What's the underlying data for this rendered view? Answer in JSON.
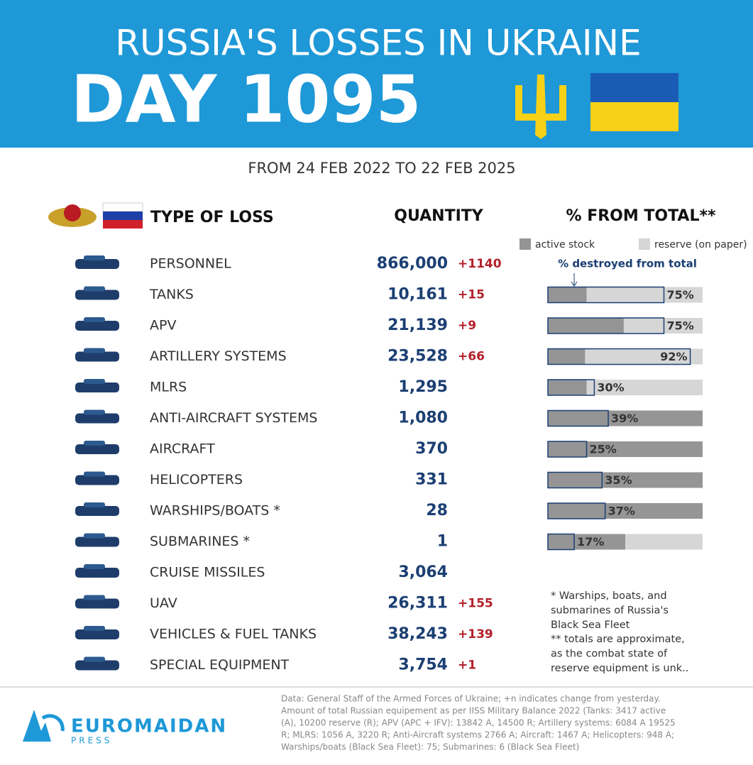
{
  "header": {
    "title": "RUSSIA'S LOSSES IN UKRAINE",
    "day": "DAY 1095",
    "period": "FROM 24 FEB 2022 TO 22 FEB 2025"
  },
  "columns": {
    "type": "TYPE OF LOSS",
    "quantity": "QUANTITY",
    "percent": "% FROM TOTAL**"
  },
  "legend": {
    "active": "active stock",
    "reserve": "reserve (on paper)",
    "destroyed": "% destroyed from total"
  },
  "rows": [
    {
      "label": "PERSONNEL",
      "quantity": "866,000",
      "change": "+1140"
    },
    {
      "label": "TANKS",
      "quantity": "10,161",
      "change": "+15",
      "bar": {
        "active": 25,
        "destroyed": 75,
        "destroyed_label": "75%"
      }
    },
    {
      "label": "APV",
      "quantity": "21,139",
      "change": "+9",
      "bar": {
        "active": 49,
        "destroyed": 75,
        "destroyed_label": "75%"
      }
    },
    {
      "label": "ARTILLERY SYSTEMS",
      "quantity": "23,528",
      "change": "+66",
      "bar": {
        "active": 24,
        "destroyed": 92,
        "destroyed_label": "92%"
      }
    },
    {
      "label": "MLRS",
      "quantity": "1,295",
      "bar": {
        "active": 25,
        "destroyed": 30,
        "destroyed_label": "30%"
      }
    },
    {
      "label": "ANTI-AIRCRAFT SYSTEMS",
      "quantity": "1,080",
      "bar": {
        "active": 100,
        "destroyed": 39,
        "destroyed_label": "39%"
      }
    },
    {
      "label": "AIRCRAFT",
      "quantity": "370",
      "bar": {
        "active": 100,
        "destroyed": 25,
        "destroyed_label": "25%"
      }
    },
    {
      "label": "HELICOPTERS",
      "quantity": "331",
      "bar": {
        "active": 100,
        "destroyed": 35,
        "destroyed_label": "35%"
      }
    },
    {
      "label": "WARSHIPS/BOATS *",
      "quantity": "28",
      "bar": {
        "active": 100,
        "destroyed": 37,
        "destroyed_label": "37%"
      }
    },
    {
      "label": "SUBMARINES *",
      "quantity": "1",
      "bar": {
        "active": 50,
        "destroyed": 17,
        "destroyed_label": "17%"
      }
    },
    {
      "label": "CRUISE MISSILES",
      "quantity": "3,064"
    },
    {
      "label": "UAV",
      "quantity": "26,311",
      "change": "+155"
    },
    {
      "label": "VEHICLES & FUEL TANKS",
      "quantity": "38,243",
      "change": "+139"
    },
    {
      "label": "SPECIAL EQUIPMENT",
      "quantity": "3,754",
      "change": "+1"
    }
  ],
  "notes": [
    "* Warships, boats, and",
    "submarines of Russia's",
    "Black Sea Fleet",
    "** totals are approximate,",
    "as the combat state of",
    "reserve equipment is unk.."
  ],
  "footer": {
    "logo": "EUROMAIDAN",
    "logo_sub": "PRESS",
    "source": [
      "Data: General Staff of the Armed Forces of Ukraine; +n indicates change from yesterday.",
      "Amount of total Russian equipement as per IISS Military Balance 2022 (Tanks: 3417 active",
      "(A), 10200 reserve (R); APV (APC + IFV): 13842 A, 14500 R; Artillery systems: 6084 A 19525",
      "R; MLRS: 1056 A, 3220 R; Anti-Aircraft systems 2766 A; Aircraft: 1467 A; Helicopters: 948 A;",
      "Warships/boats (Black Sea Fleet): 75; Submarines: 6 (Black Sea Fleet)"
    ]
  }
}
